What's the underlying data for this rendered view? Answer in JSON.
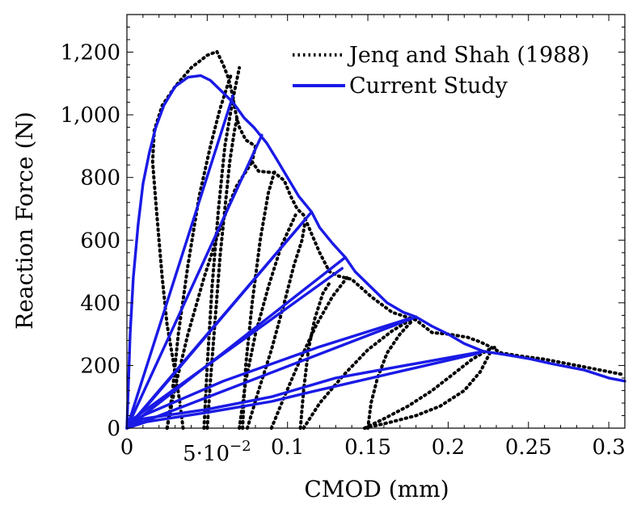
{
  "chart_data": {
    "type": "line",
    "xlabel": "CMOD (mm)",
    "ylabel": "Reaction Force (N)",
    "xlim": [
      0,
      0.31
    ],
    "ylim": [
      0,
      1320
    ],
    "x_ticks": [
      {
        "value": 0,
        "label": "0"
      },
      {
        "value": 0.05,
        "label": "5·10"
      },
      {
        "value": 0.1,
        "label": "0.1"
      },
      {
        "value": 0.15,
        "label": "0.15"
      },
      {
        "value": 0.2,
        "label": "0.2"
      },
      {
        "value": 0.25,
        "label": "0.25"
      },
      {
        "value": 0.3,
        "label": "0.3"
      }
    ],
    "x_tick_exponent": "−2",
    "y_ticks": [
      {
        "value": 0,
        "label": "0"
      },
      {
        "value": 200,
        "label": "200"
      },
      {
        "value": 400,
        "label": "400"
      },
      {
        "value": 600,
        "label": "600"
      },
      {
        "value": 800,
        "label": "800"
      },
      {
        "value": 1000,
        "label": "1,000"
      },
      {
        "value": 1200,
        "label": "1,200"
      }
    ],
    "grid": false,
    "legend_position": "top-right",
    "colors": {
      "experiment": "#000000",
      "simulation": "#1a1ae6"
    },
    "series": [
      {
        "name": "Jenq and Shah (1988)",
        "style": "dotted",
        "color": "#000000",
        "segments": [
          [
            [
              0.035,
              0
            ],
            [
              0.033,
              80
            ],
            [
              0.03,
              180
            ],
            [
              0.025,
              330
            ],
            [
              0.022,
              480
            ],
            [
              0.02,
              600
            ],
            [
              0.018,
              720
            ],
            [
              0.016,
              850
            ],
            [
              0.017,
              950
            ],
            [
              0.022,
              1030
            ],
            [
              0.03,
              1090
            ],
            [
              0.04,
              1150
            ],
            [
              0.05,
              1190
            ],
            [
              0.056,
              1202
            ],
            [
              0.06,
              1160
            ],
            [
              0.063,
              1120
            ],
            [
              0.065,
              1080
            ],
            [
              0.068,
              1000
            ],
            [
              0.07,
              960
            ],
            [
              0.074,
              920
            ],
            [
              0.08,
              900
            ],
            [
              0.078,
              850
            ],
            [
              0.082,
              820
            ],
            [
              0.092,
              815
            ],
            [
              0.098,
              790
            ],
            [
              0.102,
              740
            ],
            [
              0.106,
              700
            ],
            [
              0.11,
              680
            ],
            [
              0.115,
              620
            ],
            [
              0.12,
              560
            ],
            [
              0.126,
              500
            ],
            [
              0.132,
              485
            ],
            [
              0.14,
              475
            ],
            [
              0.152,
              420
            ],
            [
              0.165,
              370
            ],
            [
              0.18,
              345
            ],
            [
              0.19,
              305
            ],
            [
              0.2,
              300
            ],
            [
              0.212,
              290
            ],
            [
              0.22,
              275
            ],
            [
              0.228,
              255
            ],
            [
              0.233,
              240
            ],
            [
              0.245,
              230
            ],
            [
              0.26,
              220
            ],
            [
              0.28,
              200
            ],
            [
              0.3,
              180
            ],
            [
              0.31,
              170
            ]
          ],
          [
            [
              0.025,
              0
            ],
            [
              0.028,
              100
            ],
            [
              0.032,
              300
            ],
            [
              0.038,
              520
            ],
            [
              0.045,
              740
            ],
            [
              0.052,
              900
            ],
            [
              0.058,
              1020
            ],
            [
              0.063,
              1100
            ],
            [
              0.065,
              1130
            ]
          ],
          [
            [
              0.05,
              0
            ],
            [
              0.052,
              150
            ],
            [
              0.055,
              350
            ],
            [
              0.058,
              550
            ],
            [
              0.061,
              700
            ],
            [
              0.064,
              850
            ],
            [
              0.067,
              950
            ],
            [
              0.069,
              1000
            ]
          ],
          [
            [
              0.048,
              0
            ],
            [
              0.05,
              200
            ],
            [
              0.053,
              450
            ],
            [
              0.057,
              700
            ],
            [
              0.061,
              900
            ],
            [
              0.066,
              1050
            ],
            [
              0.07,
              1150
            ]
          ],
          [
            [
              0.025,
              0
            ],
            [
              0.03,
              130
            ],
            [
              0.038,
              300
            ],
            [
              0.048,
              480
            ],
            [
              0.058,
              640
            ],
            [
              0.068,
              770
            ],
            [
              0.078,
              850
            ]
          ],
          [
            [
              0.072,
              0
            ],
            [
              0.074,
              200
            ],
            [
              0.078,
              400
            ],
            [
              0.083,
              600
            ],
            [
              0.088,
              750
            ],
            [
              0.092,
              820
            ]
          ],
          [
            [
              0.07,
              0
            ],
            [
              0.074,
              150
            ],
            [
              0.08,
              300
            ],
            [
              0.088,
              450
            ],
            [
              0.096,
              580
            ],
            [
              0.105,
              680
            ]
          ],
          [
            [
              0.075,
              0
            ],
            [
              0.082,
              120
            ],
            [
              0.09,
              250
            ],
            [
              0.098,
              400
            ],
            [
              0.104,
              520
            ],
            [
              0.109,
              600
            ],
            [
              0.111,
              660
            ]
          ],
          [
            [
              0.108,
              0
            ],
            [
              0.11,
              120
            ],
            [
              0.113,
              250
            ],
            [
              0.117,
              350
            ],
            [
              0.122,
              430
            ],
            [
              0.127,
              470
            ]
          ],
          [
            [
              0.09,
              0
            ],
            [
              0.098,
              100
            ],
            [
              0.108,
              220
            ],
            [
              0.118,
              330
            ],
            [
              0.128,
              420
            ],
            [
              0.137,
              480
            ]
          ],
          [
            [
              0.11,
              0
            ],
            [
              0.12,
              80
            ],
            [
              0.135,
              170
            ],
            [
              0.15,
              250
            ],
            [
              0.165,
              310
            ],
            [
              0.178,
              350
            ]
          ],
          [
            [
              0.15,
              0
            ],
            [
              0.152,
              80
            ],
            [
              0.156,
              160
            ],
            [
              0.162,
              240
            ],
            [
              0.17,
              300
            ],
            [
              0.178,
              345
            ]
          ],
          [
            [
              0.148,
              0
            ],
            [
              0.16,
              30
            ],
            [
              0.175,
              70
            ],
            [
              0.19,
              120
            ],
            [
              0.205,
              180
            ],
            [
              0.215,
              220
            ],
            [
              0.225,
              250
            ],
            [
              0.23,
              260
            ]
          ],
          [
            [
              0.148,
              0
            ],
            [
              0.165,
              20
            ],
            [
              0.18,
              40
            ],
            [
              0.195,
              70
            ],
            [
              0.21,
              120
            ],
            [
              0.22,
              180
            ],
            [
              0.226,
              240
            ]
          ]
        ]
      },
      {
        "name": "Current Study",
        "style": "solid",
        "color": "#1a1ae6",
        "segments": [
          [
            [
              0,
              0
            ],
            [
              0.001,
              150
            ],
            [
              0.002,
              300
            ],
            [
              0.004,
              480
            ],
            [
              0.007,
              650
            ],
            [
              0.01,
              780
            ],
            [
              0.014,
              880
            ],
            [
              0.018,
              960
            ],
            [
              0.023,
              1030
            ],
            [
              0.03,
              1090
            ],
            [
              0.038,
              1120
            ],
            [
              0.046,
              1125
            ],
            [
              0.052,
              1110
            ],
            [
              0.058,
              1080
            ],
            [
              0.066,
              1040
            ],
            [
              0.073,
              990
            ],
            [
              0.079,
              960
            ],
            [
              0.083,
              935
            ],
            [
              0.087,
              910
            ],
            [
              0.093,
              860
            ],
            [
              0.1,
              800
            ],
            [
              0.107,
              740
            ],
            [
              0.115,
              690
            ],
            [
              0.12,
              640
            ],
            [
              0.128,
              590
            ],
            [
              0.136,
              545
            ],
            [
              0.142,
              500
            ],
            [
              0.152,
              450
            ],
            [
              0.162,
              400
            ],
            [
              0.172,
              370
            ],
            [
              0.18,
              355
            ],
            [
              0.19,
              325
            ],
            [
              0.2,
              300
            ],
            [
              0.21,
              270
            ],
            [
              0.222,
              245
            ],
            [
              0.235,
              235
            ],
            [
              0.25,
              222
            ],
            [
              0.265,
              205
            ],
            [
              0.285,
              185
            ],
            [
              0.3,
              160
            ],
            [
              0.31,
              150
            ]
          ],
          [
            [
              0,
              0
            ],
            [
              0.066,
              1060
            ]
          ],
          [
            [
              0,
              0
            ],
            [
              0.084,
              935
            ]
          ],
          [
            [
              0,
              0
            ],
            [
              0.115,
              690
            ]
          ],
          [
            [
              0,
              0
            ],
            [
              0.004,
              20
            ],
            [
              0.11,
              660
            ]
          ],
          [
            [
              0,
              0
            ],
            [
              0.136,
              545
            ]
          ],
          [
            [
              0,
              0
            ],
            [
              0.004,
              30
            ],
            [
              0.134,
              510
            ]
          ],
          [
            [
              0,
              0
            ],
            [
              0.18,
              355
            ]
          ],
          [
            [
              0,
              0
            ],
            [
              0.01,
              40
            ],
            [
              0.06,
              150
            ],
            [
              0.12,
              260
            ],
            [
              0.176,
              350
            ]
          ],
          [
            [
              0,
              0
            ],
            [
              0.01,
              30
            ],
            [
              0.05,
              60
            ],
            [
              0.09,
              100
            ],
            [
              0.13,
              160
            ],
            [
              0.222,
              245
            ]
          ],
          [
            [
              0,
              0
            ],
            [
              0.012,
              20
            ],
            [
              0.05,
              50
            ],
            [
              0.09,
              85
            ],
            [
              0.11,
              110
            ],
            [
              0.22,
              240
            ]
          ]
        ]
      }
    ]
  }
}
